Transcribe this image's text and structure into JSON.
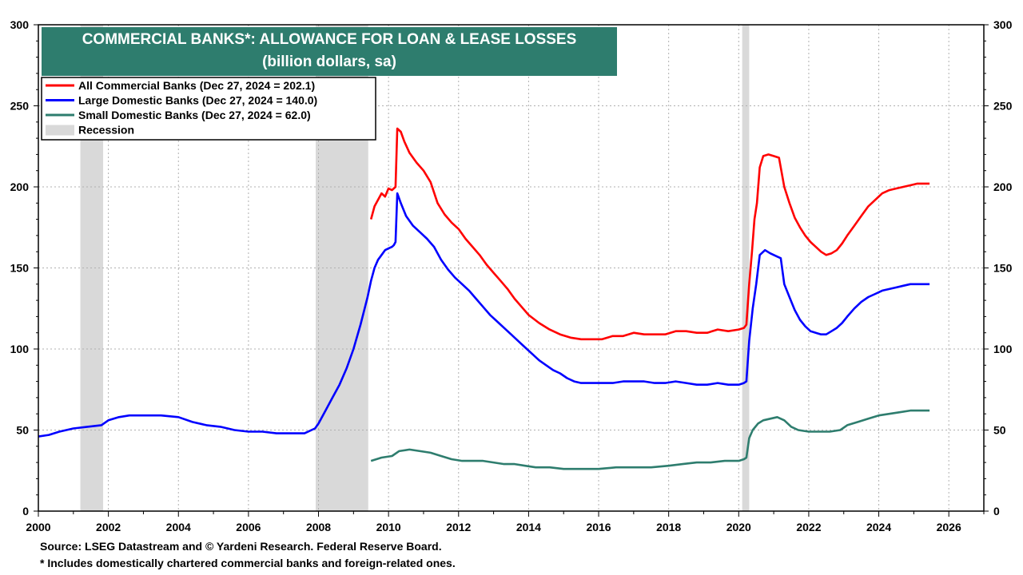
{
  "chart_data": {
    "type": "line",
    "title": "COMMERCIAL BANKS*: ALLOWANCE FOR LOAN & LEASE LOSSES",
    "subtitle": "(billion dollars, sa)",
    "xlim": [
      2000,
      2027
    ],
    "ylim": [
      0,
      300
    ],
    "x_ticks": [
      "2000",
      "2002",
      "2004",
      "2006",
      "2008",
      "2010",
      "2012",
      "2014",
      "2016",
      "2018",
      "2020",
      "2022",
      "2024",
      "2026"
    ],
    "y_ticks": [
      "0",
      "50",
      "100",
      "150",
      "200",
      "250",
      "300"
    ],
    "grid": true,
    "legend_position": "top-left",
    "title_box_color": "#2e7d6e",
    "recession_color": "#d9d9d9",
    "legend": [
      {
        "label": "All Commercial Banks (Dec 27, 2024 = 202.1)",
        "color": "#ff0000",
        "kind": "line"
      },
      {
        "label": "Large Domestic Banks (Dec 27, 2024 = 140.0)",
        "color": "#0000ff",
        "kind": "line"
      },
      {
        "label": "Small Domestic Banks (Dec 27, 2024 = 62.0)",
        "color": "#2e7d6e",
        "kind": "line"
      },
      {
        "label": "Recession",
        "color": "#d9d9d9",
        "kind": "box"
      }
    ],
    "recessions": [
      [
        2001.2,
        2001.85
      ],
      [
        2007.92,
        2009.42
      ],
      [
        2020.1,
        2020.3
      ]
    ],
    "series": [
      {
        "name": "All Commercial Banks",
        "color": "#ff0000",
        "points": [
          [
            2009.5,
            180
          ],
          [
            2009.6,
            188
          ],
          [
            2009.7,
            192
          ],
          [
            2009.8,
            196
          ],
          [
            2009.9,
            194
          ],
          [
            2010.0,
            199
          ],
          [
            2010.1,
            198
          ],
          [
            2010.2,
            200
          ],
          [
            2010.25,
            236
          ],
          [
            2010.35,
            234
          ],
          [
            2010.45,
            228
          ],
          [
            2010.6,
            221
          ],
          [
            2010.8,
            215
          ],
          [
            2011.0,
            210
          ],
          [
            2011.2,
            203
          ],
          [
            2011.4,
            190
          ],
          [
            2011.6,
            183
          ],
          [
            2011.8,
            178
          ],
          [
            2012.0,
            174
          ],
          [
            2012.2,
            168
          ],
          [
            2012.4,
            163
          ],
          [
            2012.6,
            158
          ],
          [
            2012.8,
            152
          ],
          [
            2013.0,
            147
          ],
          [
            2013.2,
            142
          ],
          [
            2013.4,
            137
          ],
          [
            2013.6,
            131
          ],
          [
            2013.8,
            126
          ],
          [
            2014.0,
            121
          ],
          [
            2014.3,
            116
          ],
          [
            2014.6,
            112
          ],
          [
            2014.9,
            109
          ],
          [
            2015.2,
            107
          ],
          [
            2015.5,
            106
          ],
          [
            2015.8,
            106
          ],
          [
            2016.1,
            106
          ],
          [
            2016.4,
            108
          ],
          [
            2016.7,
            108
          ],
          [
            2017.0,
            110
          ],
          [
            2017.3,
            109
          ],
          [
            2017.6,
            109
          ],
          [
            2017.9,
            109
          ],
          [
            2018.2,
            111
          ],
          [
            2018.5,
            111
          ],
          [
            2018.8,
            110
          ],
          [
            2019.1,
            110
          ],
          [
            2019.4,
            112
          ],
          [
            2019.7,
            111
          ],
          [
            2020.0,
            112
          ],
          [
            2020.15,
            113
          ],
          [
            2020.22,
            115
          ],
          [
            2020.3,
            140
          ],
          [
            2020.38,
            160
          ],
          [
            2020.45,
            180
          ],
          [
            2020.52,
            190
          ],
          [
            2020.6,
            212
          ],
          [
            2020.7,
            219
          ],
          [
            2020.85,
            220
          ],
          [
            2021.0,
            219
          ],
          [
            2021.15,
            218
          ],
          [
            2021.3,
            200
          ],
          [
            2021.45,
            190
          ],
          [
            2021.6,
            181
          ],
          [
            2021.75,
            175
          ],
          [
            2021.9,
            170
          ],
          [
            2022.05,
            166
          ],
          [
            2022.2,
            163
          ],
          [
            2022.35,
            160
          ],
          [
            2022.5,
            158
          ],
          [
            2022.65,
            159
          ],
          [
            2022.8,
            161
          ],
          [
            2022.95,
            165
          ],
          [
            2023.1,
            170
          ],
          [
            2023.3,
            176
          ],
          [
            2023.5,
            182
          ],
          [
            2023.7,
            188
          ],
          [
            2023.9,
            192
          ],
          [
            2024.1,
            196
          ],
          [
            2024.3,
            198
          ],
          [
            2024.5,
            199
          ],
          [
            2024.7,
            200
          ],
          [
            2024.9,
            201
          ],
          [
            2025.1,
            202
          ],
          [
            2025.3,
            202
          ],
          [
            2025.45,
            202
          ]
        ]
      },
      {
        "name": "Large Domestic Banks",
        "color": "#0000ff",
        "points": [
          [
            2000.0,
            46
          ],
          [
            2000.3,
            47
          ],
          [
            2000.6,
            49
          ],
          [
            2001.0,
            51
          ],
          [
            2001.4,
            52
          ],
          [
            2001.8,
            53
          ],
          [
            2002.0,
            56
          ],
          [
            2002.3,
            58
          ],
          [
            2002.6,
            59
          ],
          [
            2003.0,
            59
          ],
          [
            2003.5,
            59
          ],
          [
            2004.0,
            58
          ],
          [
            2004.4,
            55
          ],
          [
            2004.8,
            53
          ],
          [
            2005.2,
            52
          ],
          [
            2005.6,
            50
          ],
          [
            2006.0,
            49
          ],
          [
            2006.4,
            49
          ],
          [
            2006.8,
            48
          ],
          [
            2007.2,
            48
          ],
          [
            2007.6,
            48
          ],
          [
            2007.9,
            51
          ],
          [
            2008.0,
            54
          ],
          [
            2008.2,
            62
          ],
          [
            2008.4,
            70
          ],
          [
            2008.6,
            78
          ],
          [
            2008.8,
            88
          ],
          [
            2009.0,
            100
          ],
          [
            2009.2,
            115
          ],
          [
            2009.4,
            132
          ],
          [
            2009.5,
            142
          ],
          [
            2009.6,
            150
          ],
          [
            2009.7,
            155
          ],
          [
            2009.8,
            158
          ],
          [
            2009.9,
            161
          ],
          [
            2010.0,
            162
          ],
          [
            2010.1,
            163
          ],
          [
            2010.15,
            164
          ],
          [
            2010.2,
            166
          ],
          [
            2010.25,
            196
          ],
          [
            2010.35,
            190
          ],
          [
            2010.5,
            182
          ],
          [
            2010.7,
            176
          ],
          [
            2010.9,
            172
          ],
          [
            2011.1,
            168
          ],
          [
            2011.3,
            163
          ],
          [
            2011.5,
            155
          ],
          [
            2011.7,
            149
          ],
          [
            2011.9,
            144
          ],
          [
            2012.1,
            140
          ],
          [
            2012.3,
            136
          ],
          [
            2012.5,
            131
          ],
          [
            2012.7,
            126
          ],
          [
            2012.9,
            121
          ],
          [
            2013.1,
            117
          ],
          [
            2013.3,
            113
          ],
          [
            2013.5,
            109
          ],
          [
            2013.7,
            105
          ],
          [
            2013.9,
            101
          ],
          [
            2014.1,
            97
          ],
          [
            2014.3,
            93
          ],
          [
            2014.5,
            90
          ],
          [
            2014.7,
            87
          ],
          [
            2014.9,
            85
          ],
          [
            2015.1,
            82
          ],
          [
            2015.3,
            80
          ],
          [
            2015.5,
            79
          ],
          [
            2015.8,
            79
          ],
          [
            2016.1,
            79
          ],
          [
            2016.4,
            79
          ],
          [
            2016.7,
            80
          ],
          [
            2017.0,
            80
          ],
          [
            2017.3,
            80
          ],
          [
            2017.6,
            79
          ],
          [
            2017.9,
            79
          ],
          [
            2018.2,
            80
          ],
          [
            2018.5,
            79
          ],
          [
            2018.8,
            78
          ],
          [
            2019.1,
            78
          ],
          [
            2019.4,
            79
          ],
          [
            2019.7,
            78
          ],
          [
            2020.0,
            78
          ],
          [
            2020.15,
            79
          ],
          [
            2020.22,
            80
          ],
          [
            2020.3,
            105
          ],
          [
            2020.4,
            125
          ],
          [
            2020.5,
            140
          ],
          [
            2020.6,
            158
          ],
          [
            2020.75,
            161
          ],
          [
            2020.9,
            159
          ],
          [
            2021.1,
            157
          ],
          [
            2021.2,
            156
          ],
          [
            2021.3,
            140
          ],
          [
            2021.45,
            132
          ],
          [
            2021.6,
            124
          ],
          [
            2021.75,
            118
          ],
          [
            2021.9,
            114
          ],
          [
            2022.05,
            111
          ],
          [
            2022.2,
            110
          ],
          [
            2022.35,
            109
          ],
          [
            2022.5,
            109
          ],
          [
            2022.65,
            111
          ],
          [
            2022.8,
            113
          ],
          [
            2022.95,
            116
          ],
          [
            2023.1,
            120
          ],
          [
            2023.3,
            125
          ],
          [
            2023.5,
            129
          ],
          [
            2023.7,
            132
          ],
          [
            2023.9,
            134
          ],
          [
            2024.1,
            136
          ],
          [
            2024.3,
            137
          ],
          [
            2024.5,
            138
          ],
          [
            2024.7,
            139
          ],
          [
            2024.9,
            140
          ],
          [
            2025.1,
            140
          ],
          [
            2025.3,
            140
          ],
          [
            2025.45,
            140
          ]
        ]
      },
      {
        "name": "Small Domestic Banks",
        "color": "#2e7d6e",
        "points": [
          [
            2009.5,
            31
          ],
          [
            2009.8,
            33
          ],
          [
            2010.1,
            34
          ],
          [
            2010.3,
            37
          ],
          [
            2010.6,
            38
          ],
          [
            2010.9,
            37
          ],
          [
            2011.2,
            36
          ],
          [
            2011.5,
            34
          ],
          [
            2011.8,
            32
          ],
          [
            2012.1,
            31
          ],
          [
            2012.4,
            31
          ],
          [
            2012.7,
            31
          ],
          [
            2013.0,
            30
          ],
          [
            2013.3,
            29
          ],
          [
            2013.6,
            29
          ],
          [
            2013.9,
            28
          ],
          [
            2014.2,
            27
          ],
          [
            2014.6,
            27
          ],
          [
            2015.0,
            26
          ],
          [
            2015.5,
            26
          ],
          [
            2016.0,
            26
          ],
          [
            2016.5,
            27
          ],
          [
            2017.0,
            27
          ],
          [
            2017.5,
            27
          ],
          [
            2018.0,
            28
          ],
          [
            2018.4,
            29
          ],
          [
            2018.8,
            30
          ],
          [
            2019.2,
            30
          ],
          [
            2019.6,
            31
          ],
          [
            2020.0,
            31
          ],
          [
            2020.15,
            32
          ],
          [
            2020.22,
            33
          ],
          [
            2020.3,
            45
          ],
          [
            2020.4,
            50
          ],
          [
            2020.55,
            54
          ],
          [
            2020.7,
            56
          ],
          [
            2020.9,
            57
          ],
          [
            2021.1,
            58
          ],
          [
            2021.3,
            56
          ],
          [
            2021.5,
            52
          ],
          [
            2021.7,
            50
          ],
          [
            2022.0,
            49
          ],
          [
            2022.3,
            49
          ],
          [
            2022.6,
            49
          ],
          [
            2022.9,
            50
          ],
          [
            2023.1,
            53
          ],
          [
            2023.4,
            55
          ],
          [
            2023.7,
            57
          ],
          [
            2024.0,
            59
          ],
          [
            2024.3,
            60
          ],
          [
            2024.6,
            61
          ],
          [
            2024.9,
            62
          ],
          [
            2025.2,
            62
          ],
          [
            2025.45,
            62
          ]
        ]
      }
    ]
  },
  "footer": {
    "source": "Source: LSEG Datastream and © Yardeni Research. Federal Reserve Board.",
    "note": "* Includes domestically chartered commercial banks and foreign-related ones."
  }
}
